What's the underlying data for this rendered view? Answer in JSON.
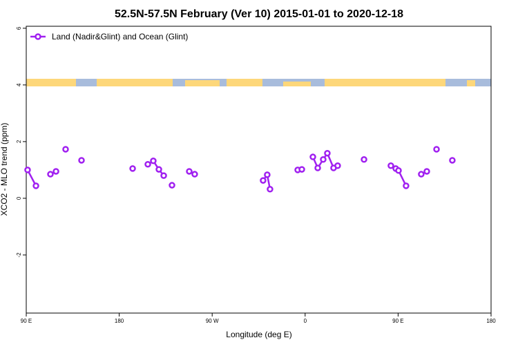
{
  "chart_data": {
    "type": "line",
    "title": "52.5N-57.5N February (Ver 10)   2015-01-01 to 2020-12-18",
    "x_label": "Longitude (deg E)",
    "y_label": "XCO2 - MLO trend (ppm)",
    "x": [
      91.3,
      99.4,
      null,
      113.4,
      118.8,
      null,
      128.1,
      null,
      143.5,
      null,
      193.0,
      null,
      207.7,
      213.0,
      218.4,
      223.1,
      null,
      231.1,
      null,
      247.8,
      253.1,
      null,
      319.3,
      323.3,
      326.0,
      null,
      352.8,
      356.8,
      null,
      367.5,
      372.2,
      377.5,
      381.5,
      387.5,
      391.5,
      null,
      417.0,
      null,
      443.0,
      447.7,
      450.4,
      457.7,
      null,
      472.4,
      477.8,
      null,
      487.2,
      null,
      502.5
    ],
    "series": [
      {
        "name": "Land (Nadir&Glint) and Ocean (Glint)",
        "color": "#a020f0",
        "values": [
          1.0,
          0.44,
          null,
          0.85,
          0.95,
          null,
          1.73,
          null,
          1.34,
          null,
          1.05,
          null,
          1.2,
          1.32,
          1.02,
          0.8,
          null,
          0.46,
          null,
          0.95,
          0.85,
          null,
          0.63,
          0.83,
          0.32,
          null,
          1.0,
          1.02,
          null,
          1.46,
          1.07,
          1.37,
          1.59,
          1.07,
          1.15,
          null,
          1.37,
          null,
          1.15,
          1.05,
          0.98,
          0.44,
          null,
          0.85,
          0.95,
          null,
          1.73,
          null,
          1.34
        ]
      }
    ],
    "xlim": [
      90,
      540
    ],
    "xticks": [
      {
        "value": 90,
        "label": "90 E"
      },
      {
        "value": 180,
        "label": "180"
      },
      {
        "value": 270,
        "label": "90 W"
      },
      {
        "value": 360,
        "label": "0"
      },
      {
        "value": 450,
        "label": "90 E"
      },
      {
        "value": 540,
        "label": "180"
      }
    ],
    "ylim": [
      -4.05,
      6.07
    ],
    "yticks": [
      -2,
      0,
      2,
      4,
      6
    ],
    "legend": "top-left"
  }
}
